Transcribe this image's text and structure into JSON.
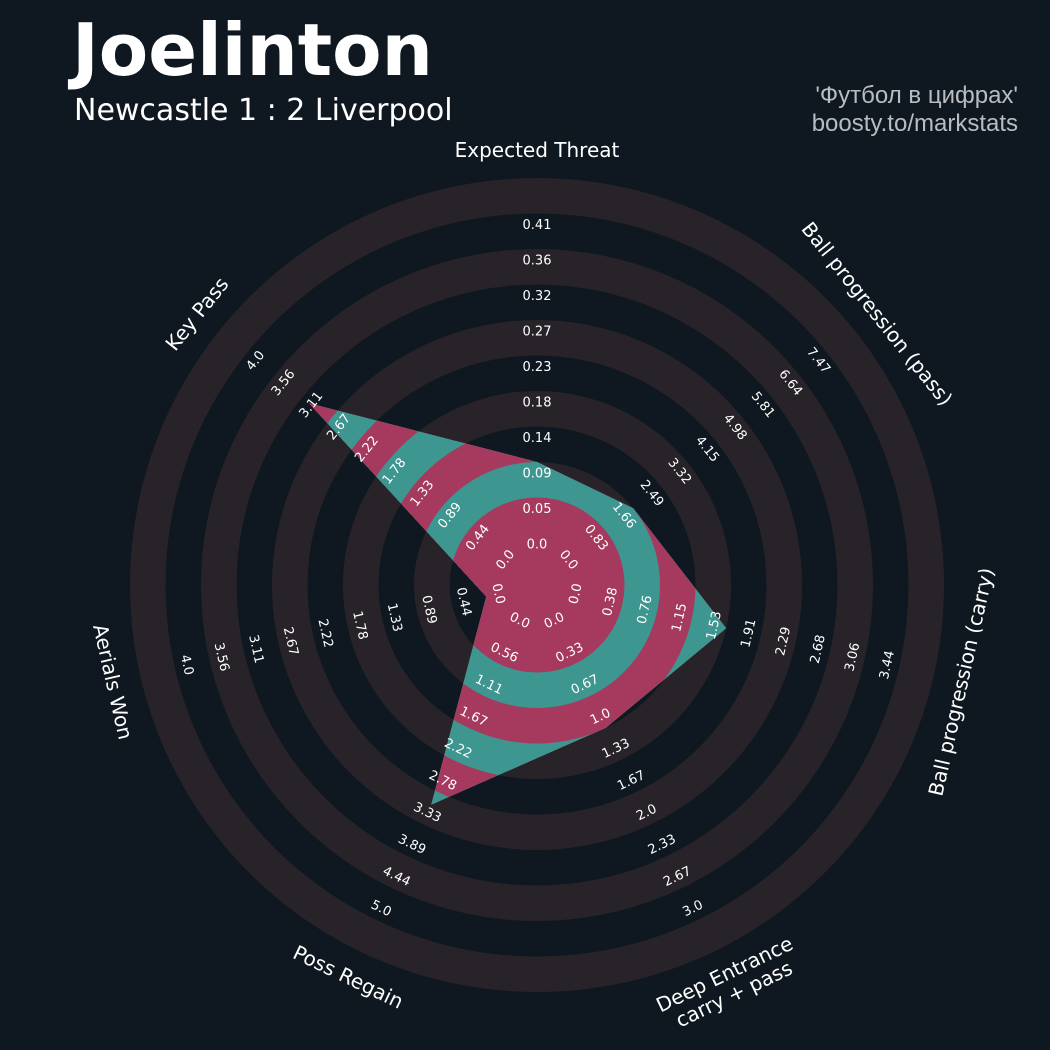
{
  "header": {
    "player": "Joelinton",
    "match": "Newcastle 1 : 2 Liverpool",
    "credit_line1": "'Футбол в цифрах'",
    "credit_line2": "boosty.to/markstats"
  },
  "colors": {
    "background": "#0f1820",
    "ring_band": "#282329",
    "ring_gap": "#0f1820",
    "fill_teal": "#3e9690",
    "fill_magenta": "#a53a5e",
    "text": "#ffffff"
  },
  "chart_data": {
    "type": "radar",
    "ring_count": 10,
    "axes": [
      {
        "name": "Expected Threat",
        "value": 0.09,
        "ticks": [
          "0.0",
          "0.05",
          "0.09",
          "0.14",
          "0.18",
          "0.23",
          "0.27",
          "0.32",
          "0.36",
          "0.41"
        ]
      },
      {
        "name": "Ball progression (pass)",
        "value": 1.66,
        "ticks": [
          "0.0",
          "0.83",
          "1.66",
          "2.49",
          "3.32",
          "4.15",
          "4.98",
          "5.81",
          "6.64",
          "7.47"
        ]
      },
      {
        "name": "Ball progression (carry)",
        "value": 1.53,
        "ticks": [
          "0.0",
          "0.38",
          "0.76",
          "1.15",
          "1.53",
          "1.91",
          "2.29",
          "2.68",
          "3.06",
          "3.44"
        ]
      },
      {
        "name": "Deep Entrance\ncarry + pass",
        "value": 1.0,
        "ticks": [
          "0.0",
          "0.33",
          "0.67",
          "1.0",
          "1.33",
          "1.67",
          "2.0",
          "2.33",
          "2.67",
          "3.0"
        ]
      },
      {
        "name": "Poss Regain",
        "value": 3.0,
        "ticks": [
          "0.0",
          "0.56",
          "1.11",
          "1.67",
          "2.22",
          "2.78",
          "3.33",
          "3.89",
          "4.44",
          "5.0"
        ]
      },
      {
        "name": "Aerials Won",
        "value": 0.0,
        "ticks": [
          "0.0",
          "0.44",
          "0.89",
          "1.33",
          "1.78",
          "2.22",
          "2.67",
          "3.11",
          "3.56",
          "4.0"
        ]
      },
      {
        "name": "Key Pass",
        "value": 3.0,
        "ticks": [
          "0.0",
          "0.44",
          "0.89",
          "1.33",
          "1.78",
          "2.22",
          "2.67",
          "3.11",
          "3.56",
          "4.0"
        ]
      }
    ]
  }
}
